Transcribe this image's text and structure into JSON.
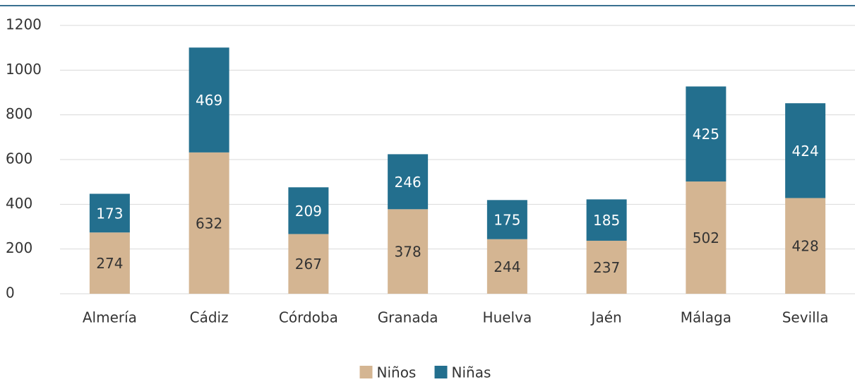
{
  "chart_data": {
    "type": "stacked_bar",
    "categories": [
      "Almería",
      "Cádiz",
      "Córdoba",
      "Granada",
      "Huelva",
      "Jaén",
      "Málaga",
      "Sevilla"
    ],
    "series": [
      {
        "name": "Niños",
        "color": "#d4b592",
        "values": [
          274,
          632,
          267,
          378,
          244,
          237,
          502,
          428
        ]
      },
      {
        "name": "Niñas",
        "color": "#236f8e",
        "values": [
          173,
          469,
          209,
          246,
          175,
          185,
          425,
          424
        ]
      }
    ],
    "ylim": [
      0,
      1200
    ],
    "yticks": [
      0,
      200,
      400,
      600,
      800,
      1000,
      1200
    ],
    "grid": true,
    "legend": "bottom"
  }
}
